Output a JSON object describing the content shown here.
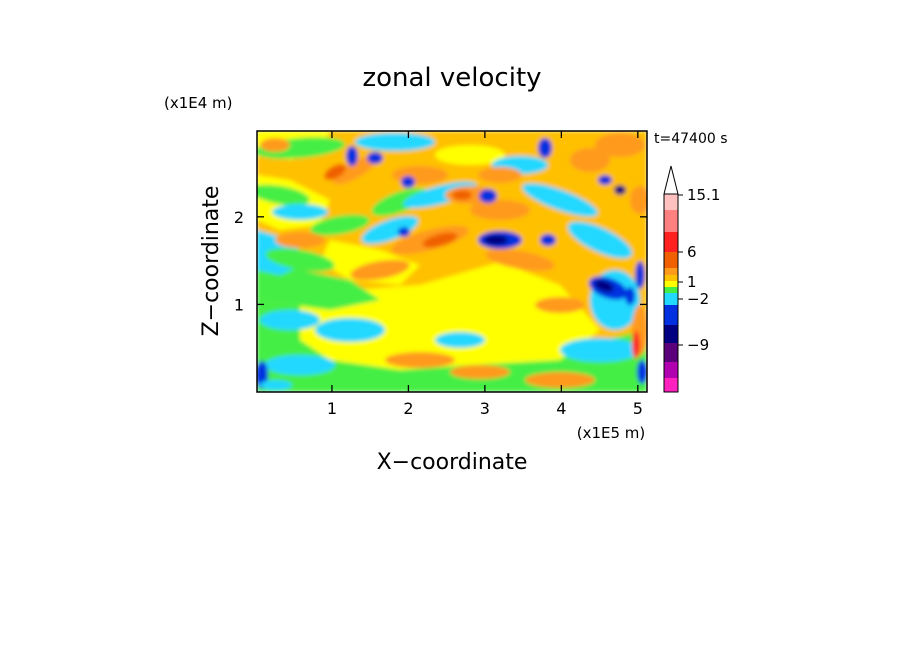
{
  "chart_data": {
    "type": "heatmap",
    "title": "zonal velocity",
    "xlabel": "X−coordinate",
    "ylabel": "Z−coordinate",
    "x_unit": "(x1E5 m)",
    "y_unit": "(x1E4 m)",
    "time_label": "t=47400 s",
    "xlim": [
      0.02,
      5.12
    ],
    "ylim": [
      0.0,
      2.98
    ],
    "x_ticks": [
      {
        "value": 1,
        "label": "1"
      },
      {
        "value": 2,
        "label": "2"
      },
      {
        "value": 3,
        "label": "3"
      },
      {
        "value": 4,
        "label": "4"
      },
      {
        "value": 5,
        "label": "5"
      }
    ],
    "y_ticks": [
      {
        "value": 1,
        "label": "1"
      },
      {
        "value": 2,
        "label": "2"
      }
    ],
    "colorbar": {
      "label_values": [
        "15.1",
        "6",
        "1",
        "−2",
        "−9"
      ],
      "colors_top_to_bottom": [
        "#ffc0c0",
        "#ff8080",
        "#ff2020",
        "#f06000",
        "#ff9a1a",
        "#ffc000",
        "#ffff00",
        "#44ee44",
        "#22d8ff",
        "#0030e0",
        "#000080",
        "#5a007a",
        "#b000b0",
        "#ff20c0"
      ]
    },
    "grid": false,
    "legend": "colorbar-right"
  }
}
